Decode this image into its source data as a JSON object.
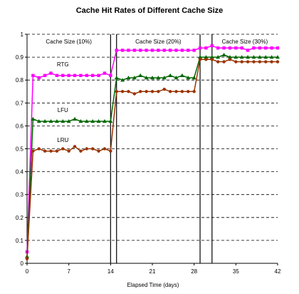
{
  "chart_data": {
    "type": "line",
    "title": "Cache Hit Rates of Different Cache Size",
    "xlabel": "Elapsed Time (days)",
    "ylabel": "",
    "xlim": [
      0,
      42
    ],
    "ylim": [
      0,
      1
    ],
    "xticks": [
      "0",
      "7",
      "14",
      "21",
      "28",
      "35",
      "42"
    ],
    "yticks": [
      "0",
      "0.1",
      "0.2",
      "0.3",
      "0.4",
      "0.5",
      "0.6",
      "0.7",
      "0.8",
      "0.9",
      "1"
    ],
    "grid": "horizontal dashed",
    "regions": [
      {
        "label": "Cache Size (10%)"
      },
      {
        "label": "Cache Size (20%)"
      },
      {
        "label": "Cache Size (30%)"
      }
    ],
    "region_boundaries_days": [
      14,
      15,
      29,
      31
    ],
    "series": [
      {
        "name": "RTG",
        "color": "#ff00ff",
        "marker": "square",
        "x": [
          0,
          1,
          2,
          3,
          4,
          5,
          6,
          7,
          8,
          9,
          10,
          11,
          12,
          13,
          14,
          15,
          16,
          17,
          18,
          19,
          20,
          21,
          22,
          23,
          24,
          25,
          26,
          27,
          28,
          29,
          30,
          31,
          32,
          33,
          34,
          35,
          36,
          37,
          38,
          39,
          40,
          41,
          42
        ],
        "values": [
          0.05,
          0.82,
          0.81,
          0.82,
          0.83,
          0.82,
          0.82,
          0.82,
          0.82,
          0.82,
          0.82,
          0.82,
          0.82,
          0.83,
          0.82,
          0.93,
          0.93,
          0.93,
          0.93,
          0.93,
          0.93,
          0.93,
          0.93,
          0.93,
          0.93,
          0.93,
          0.93,
          0.93,
          0.93,
          0.94,
          0.94,
          0.95,
          0.94,
          0.94,
          0.94,
          0.94,
          0.94,
          0.93,
          0.94,
          0.94,
          0.94,
          0.94,
          0.94
        ]
      },
      {
        "name": "LFU",
        "color": "#006600",
        "marker": "triangle",
        "x": [
          0,
          1,
          2,
          3,
          4,
          5,
          6,
          7,
          8,
          9,
          10,
          11,
          12,
          13,
          14,
          15,
          16,
          17,
          18,
          19,
          20,
          21,
          22,
          23,
          24,
          25,
          26,
          27,
          28,
          29,
          30,
          31,
          32,
          33,
          34,
          35,
          36,
          37,
          38,
          39,
          40,
          41,
          42
        ],
        "values": [
          0.03,
          0.63,
          0.62,
          0.62,
          0.62,
          0.62,
          0.62,
          0.62,
          0.63,
          0.62,
          0.62,
          0.62,
          0.62,
          0.62,
          0.62,
          0.81,
          0.8,
          0.81,
          0.81,
          0.82,
          0.81,
          0.81,
          0.81,
          0.81,
          0.82,
          0.81,
          0.82,
          0.81,
          0.81,
          0.9,
          0.9,
          0.9,
          0.9,
          0.91,
          0.9,
          0.9,
          0.9,
          0.9,
          0.9,
          0.9,
          0.9,
          0.9,
          0.9
        ]
      },
      {
        "name": "LRU",
        "color": "#993300",
        "marker": "circle",
        "x": [
          0,
          1,
          2,
          3,
          4,
          5,
          6,
          7,
          8,
          9,
          10,
          11,
          12,
          13,
          14,
          15,
          16,
          17,
          18,
          19,
          20,
          21,
          22,
          23,
          24,
          25,
          26,
          27,
          28,
          29,
          30,
          31,
          32,
          33,
          34,
          35,
          36,
          37,
          38,
          39,
          40,
          41,
          42
        ],
        "values": [
          0.02,
          0.49,
          0.5,
          0.49,
          0.49,
          0.49,
          0.5,
          0.49,
          0.51,
          0.49,
          0.5,
          0.5,
          0.49,
          0.5,
          0.49,
          0.75,
          0.75,
          0.75,
          0.74,
          0.75,
          0.75,
          0.75,
          0.75,
          0.76,
          0.75,
          0.75,
          0.75,
          0.75,
          0.75,
          0.89,
          0.89,
          0.89,
          0.88,
          0.88,
          0.89,
          0.88,
          0.88,
          0.88,
          0.88,
          0.88,
          0.88,
          0.88,
          0.88
        ]
      }
    ],
    "series_label_positions": [
      {
        "name": "RTG",
        "x": 6,
        "y": 0.86
      },
      {
        "name": "LFU",
        "x": 6,
        "y": 0.66
      },
      {
        "name": "LRU",
        "x": 6,
        "y": 0.53
      }
    ]
  }
}
